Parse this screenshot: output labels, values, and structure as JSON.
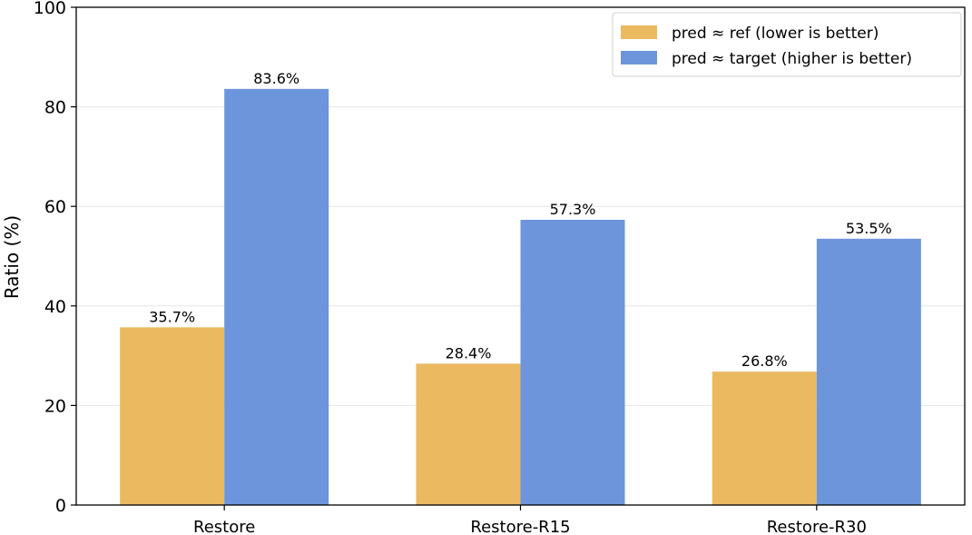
{
  "chart_data": {
    "type": "bar",
    "categories": [
      "Restore",
      "Restore-R15",
      "Restore-R30"
    ],
    "series": [
      {
        "name": "pred ≈ ref (lower is better)",
        "values": [
          35.7,
          28.4,
          26.8
        ],
        "labels": [
          "35.7%",
          "28.4%",
          "26.8%"
        ],
        "color": "#EBB960"
      },
      {
        "name": "pred ≈ target (higher is better)",
        "values": [
          83.6,
          57.3,
          53.5
        ],
        "labels": [
          "83.6%",
          "57.3%",
          "53.5%"
        ],
        "color": "#6C95DB"
      }
    ],
    "title": "",
    "xlabel": "",
    "ylabel": "Ratio (%)",
    "ylim": [
      0,
      100
    ],
    "yticks": [
      0,
      20,
      40,
      60,
      80,
      100
    ],
    "grid": "y",
    "legend_position": "top-right"
  }
}
